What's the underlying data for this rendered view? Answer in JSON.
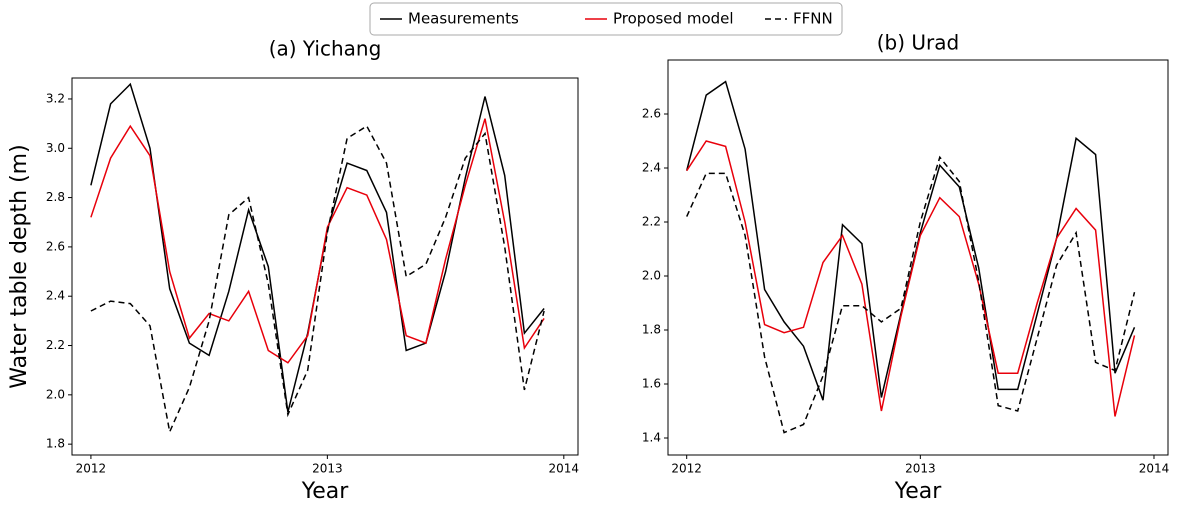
{
  "chart_data": [
    {
      "type": "line",
      "title": "(a) Yichang",
      "xlabel": "Year",
      "ylabel": "Water table depth (m)",
      "x": [
        2012,
        2012.0833,
        2012.1667,
        2012.25,
        2012.3333,
        2012.4167,
        2012.5,
        2012.5833,
        2012.6667,
        2012.75,
        2012.8333,
        2012.9167,
        2013,
        2013.0833,
        2013.1667,
        2013.25,
        2013.3333,
        2013.4167,
        2013.5,
        2013.5833,
        2013.6667,
        2013.75,
        2013.8333,
        2013.9167
      ],
      "series": [
        {
          "name": "Measurements",
          "color": "#000000",
          "style": "solid",
          "values": [
            2.85,
            3.18,
            3.26,
            3.0,
            2.43,
            2.21,
            2.16,
            2.42,
            2.75,
            2.52,
            1.93,
            2.25,
            2.67,
            2.94,
            2.91,
            2.74,
            2.18,
            2.21,
            2.5,
            2.88,
            3.21,
            2.89,
            2.25,
            2.35
          ]
        },
        {
          "name": "Proposed model",
          "color": "#e8000b",
          "style": "solid",
          "values": [
            2.72,
            2.96,
            3.09,
            2.97,
            2.5,
            2.23,
            2.33,
            2.3,
            2.42,
            2.18,
            2.13,
            2.24,
            2.68,
            2.84,
            2.81,
            2.63,
            2.24,
            2.21,
            2.55,
            2.85,
            3.12,
            2.7,
            2.19,
            2.31
          ]
        },
        {
          "name": "FFNN",
          "color": "#000000",
          "style": "dashed",
          "values": [
            2.34,
            2.38,
            2.37,
            2.28,
            1.85,
            2.03,
            2.3,
            2.73,
            2.8,
            2.45,
            1.92,
            2.1,
            2.66,
            3.04,
            3.09,
            2.94,
            2.48,
            2.53,
            2.72,
            2.96,
            3.06,
            2.6,
            2.02,
            2.34
          ]
        }
      ],
      "xlim": [
        2011.92,
        2014.06
      ],
      "xticks": [
        2012,
        2013,
        2014
      ],
      "ylim": [
        1.756,
        3.285
      ],
      "yticks": [
        1.8,
        {
          "value": 2,
          "label": "2.0"
        },
        2.2,
        2.4,
        2.6,
        2.8,
        {
          "value": 3,
          "label": "3.0"
        },
        3.2
      ]
    },
    {
      "type": "line",
      "title": "(b) Urad",
      "xlabel": "Year",
      "x": [
        2012,
        2012.0833,
        2012.1667,
        2012.25,
        2012.3333,
        2012.4167,
        2012.5,
        2012.5833,
        2012.6667,
        2012.75,
        2012.8333,
        2012.9167,
        2013,
        2013.0833,
        2013.1667,
        2013.25,
        2013.3333,
        2013.4167,
        2013.5,
        2013.5833,
        2013.6667,
        2013.75,
        2013.8333,
        2013.9167
      ],
      "series": [
        {
          "name": "Measurements",
          "color": "#000000",
          "style": "solid",
          "values": [
            2.39,
            2.67,
            2.72,
            2.47,
            1.95,
            1.83,
            1.74,
            1.54,
            2.19,
            2.12,
            1.55,
            1.86,
            2.16,
            2.41,
            2.33,
            2.03,
            1.58,
            1.58,
            1.86,
            2.14,
            2.51,
            2.45,
            1.64,
            1.81
          ]
        },
        {
          "name": "Proposed model",
          "color": "#e8000b",
          "style": "solid",
          "values": [
            2.39,
            2.5,
            2.48,
            2.2,
            1.82,
            1.79,
            1.81,
            2.05,
            2.15,
            1.97,
            1.5,
            1.85,
            2.15,
            2.29,
            2.22,
            1.97,
            1.64,
            1.64,
            1.9,
            2.14,
            2.25,
            2.17,
            1.48,
            1.78
          ]
        },
        {
          "name": "FFNN",
          "color": "#000000",
          "style": "dashed",
          "values": [
            2.22,
            2.38,
            2.38,
            2.15,
            1.7,
            1.42,
            1.45,
            1.63,
            1.89,
            1.89,
            1.83,
            1.88,
            2.2,
            2.44,
            2.35,
            1.98,
            1.52,
            1.5,
            1.77,
            2.04,
            2.16,
            1.68,
            1.65,
            1.94
          ]
        }
      ],
      "xlim": [
        2011.92,
        2014.06
      ],
      "xticks": [
        2012,
        2013,
        2014
      ],
      "ylim": [
        1.337,
        2.8
      ],
      "yticks": [
        1.4,
        1.6,
        1.8,
        {
          "value": 2,
          "label": "2.0"
        },
        2.2,
        2.4,
        2.6
      ]
    }
  ]
}
